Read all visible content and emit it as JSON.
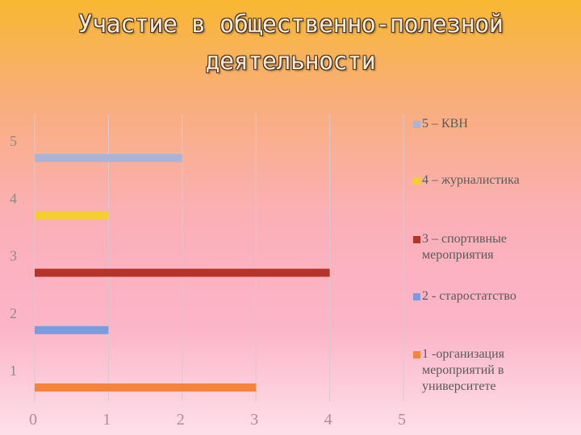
{
  "title_line1": "Участие в общественно-полезной",
  "title_line2": "деятельности",
  "chart_data": {
    "type": "bar",
    "orientation": "horizontal",
    "categories": [
      "1",
      "2",
      "3",
      "4",
      "5"
    ],
    "values": [
      3,
      1,
      4,
      1,
      2
    ],
    "colors": [
      "#f4843a",
      "#7b9be0",
      "#b5342a",
      "#f5cf30",
      "#a9b4d8"
    ],
    "xlim": [
      0,
      5
    ],
    "xticks": [
      "0",
      "1",
      "2",
      "3",
      "4",
      "5"
    ],
    "grid": true,
    "legend_position": "right",
    "legend": [
      {
        "label": "5 – КВН",
        "color": "#a9b4d8"
      },
      {
        "label": "4 – журналистика",
        "color": "#f5cf30"
      },
      {
        "label": "3 – спортивные мероприятия",
        "color": "#b5342a"
      },
      {
        "label": "2 - старостатство",
        "color": "#7b9be0"
      },
      {
        "label": "1 -организация мероприятий в университете",
        "color": "#f4843a"
      }
    ]
  }
}
